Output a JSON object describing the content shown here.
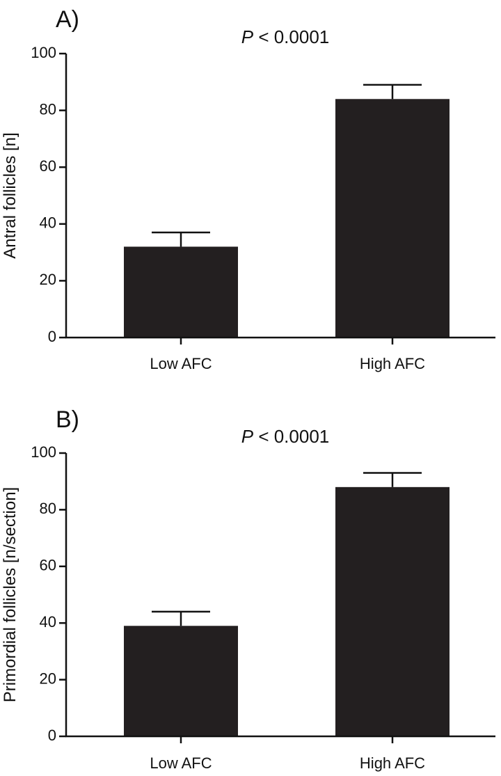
{
  "chart_data": [
    {
      "type": "bar",
      "panel_label": "A)",
      "p_prefix": "P",
      "p_text": " < 0.0001",
      "categories": [
        "Low AFC",
        "High AFC"
      ],
      "values": [
        32,
        84
      ],
      "error_upper": [
        37,
        89
      ],
      "ylabel": "Antral follicles [n]",
      "ylim": [
        0,
        100
      ],
      "yticks": [
        0,
        20,
        40,
        60,
        80,
        100
      ]
    },
    {
      "type": "bar",
      "panel_label": "B)",
      "p_prefix": "P",
      "p_text": " < 0.0001",
      "categories": [
        "Low AFC",
        "High AFC"
      ],
      "values": [
        39,
        88
      ],
      "error_upper": [
        44,
        93
      ],
      "ylabel": "Primordial follicles [n/section]",
      "ylim": [
        0,
        100
      ],
      "yticks": [
        0,
        20,
        40,
        60,
        80,
        100
      ]
    }
  ],
  "colors": {
    "bar": "#231f20",
    "axis": "#111111"
  }
}
